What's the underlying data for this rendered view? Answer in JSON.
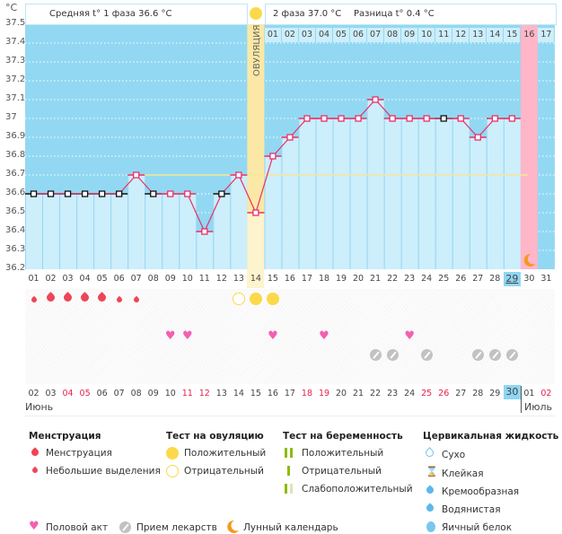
{
  "chart_data": {
    "type": "line",
    "title": "",
    "ylabel": "°C",
    "ylim": [
      36.2,
      37.5
    ],
    "yticks": [
      "37.5",
      "37.4",
      "37.3",
      "37.2",
      "37.1",
      "37",
      "36.9",
      "36.8",
      "36.7",
      "36.6",
      "36.5",
      "36.4",
      "36.3",
      "36.2"
    ],
    "x": [
      "01",
      "02",
      "03",
      "04",
      "05",
      "06",
      "07",
      "08",
      "09",
      "10",
      "11",
      "12",
      "13",
      "14",
      "15",
      "16",
      "17",
      "18",
      "19",
      "20",
      "21",
      "22",
      "23",
      "24",
      "25",
      "26",
      "27",
      "28",
      "29",
      "30",
      "31"
    ],
    "series": [
      {
        "name": "Базальная температура",
        "color": "#e8306a",
        "values": [
          36.6,
          36.6,
          36.6,
          36.6,
          36.6,
          36.6,
          36.7,
          36.6,
          36.6,
          36.6,
          36.4,
          36.6,
          36.7,
          36.5,
          36.8,
          36.9,
          37.0,
          37.0,
          37.0,
          37.0,
          37.1,
          37.0,
          37.0,
          37.0,
          37.0,
          37.0,
          36.9,
          37.0,
          37.0,
          null,
          null
        ],
        "excluded_points": [
          1,
          2,
          3,
          4,
          5,
          6,
          8,
          12,
          25
        ]
      }
    ],
    "coverline": 36.7,
    "ovulation_day": 14,
    "ovulation_label": "ОВУЛЯЦИЯ",
    "phase2_days": [
      "01",
      "02",
      "03",
      "04",
      "05",
      "06",
      "07",
      "08",
      "09",
      "10",
      "11",
      "12",
      "13",
      "14",
      "15",
      "16",
      "17"
    ],
    "phase2_highlight_day": "16",
    "expected_period_day": 30,
    "lunar_day": 30,
    "today_cycle_day": 29
  },
  "header": {
    "unit": "°C",
    "phase1_label": "Средняя t° 1 фаза 36.6 °C",
    "phase2_label": "2 фаза 37.0 °C",
    "diff_label": "Разница t° 0.4 °C"
  },
  "markers": {
    "menstruation": [
      {
        "day": 1,
        "type": "small"
      },
      {
        "day": 2,
        "type": "full"
      },
      {
        "day": 3,
        "type": "full"
      },
      {
        "day": 4,
        "type": "full"
      },
      {
        "day": 5,
        "type": "full"
      },
      {
        "day": 6,
        "type": "small"
      },
      {
        "day": 7,
        "type": "small"
      }
    ],
    "ovulation_test": [
      {
        "day": 13,
        "result": "negative"
      },
      {
        "day": 14,
        "result": "positive"
      },
      {
        "day": 15,
        "result": "positive"
      }
    ],
    "intercourse": [
      8,
      9,
      14,
      17,
      22
    ],
    "medication": [
      20,
      21,
      23,
      26,
      27,
      28
    ]
  },
  "calendar": {
    "days": [
      {
        "d": "02",
        "red": false
      },
      {
        "d": "03",
        "red": false
      },
      {
        "d": "04",
        "red": true
      },
      {
        "d": "05",
        "red": true
      },
      {
        "d": "06",
        "red": false
      },
      {
        "d": "07",
        "red": false
      },
      {
        "d": "08",
        "red": false
      },
      {
        "d": "09",
        "red": false
      },
      {
        "d": "10",
        "red": false
      },
      {
        "d": "11",
        "red": true
      },
      {
        "d": "12",
        "red": true
      },
      {
        "d": "13",
        "red": false
      },
      {
        "d": "14",
        "red": false
      },
      {
        "d": "15",
        "red": false
      },
      {
        "d": "16",
        "red": false
      },
      {
        "d": "17",
        "red": false
      },
      {
        "d": "18",
        "red": true
      },
      {
        "d": "19",
        "red": true
      },
      {
        "d": "20",
        "red": false
      },
      {
        "d": "21",
        "red": false
      },
      {
        "d": "22",
        "red": false
      },
      {
        "d": "23",
        "red": false
      },
      {
        "d": "24",
        "red": false
      },
      {
        "d": "25",
        "red": true
      },
      {
        "d": "26",
        "red": true
      },
      {
        "d": "27",
        "red": false
      },
      {
        "d": "28",
        "red": false
      },
      {
        "d": "29",
        "red": false
      },
      {
        "d": "30",
        "red": false,
        "today": true
      },
      {
        "d": "01",
        "red": false
      },
      {
        "d": "02",
        "red": true
      }
    ],
    "month1": "Июнь",
    "month2": "Июль"
  },
  "legend": {
    "menstruation": {
      "title": "Менструация",
      "items": [
        "Менструация",
        "Небольшие выделения"
      ]
    },
    "ovulation_test": {
      "title": "Тест на овуляцию",
      "items": [
        "Положительный",
        "Отрицательный"
      ]
    },
    "pregnancy_test": {
      "title": "Тест на беременность",
      "items": [
        "Положительный",
        "Отрицательный",
        "Слабоположительный"
      ]
    },
    "cervical_fluid": {
      "title": "Цервикальная жидкость",
      "items": [
        "Сухо",
        "Клейкая",
        "Кремообразная",
        "Водянистая",
        "Яичный белок"
      ]
    },
    "misc": [
      "Половой акт",
      "Прием лекарств",
      "Лунный календарь"
    ]
  },
  "colors": {
    "plot_bg": "#93d8f2",
    "bar_fill": "#cdeefb",
    "ovulation_band": "#fbe8a6",
    "period_band": "#ffb6c8",
    "line": "#e8306a",
    "coverline": "#f5e79a",
    "drop": "#ef4456",
    "sun": "#fbd94a",
    "heart": "#f45fb0",
    "pill": "#c2c2c2",
    "moon": "#f39a1e",
    "today": "#8fd6f2"
  }
}
